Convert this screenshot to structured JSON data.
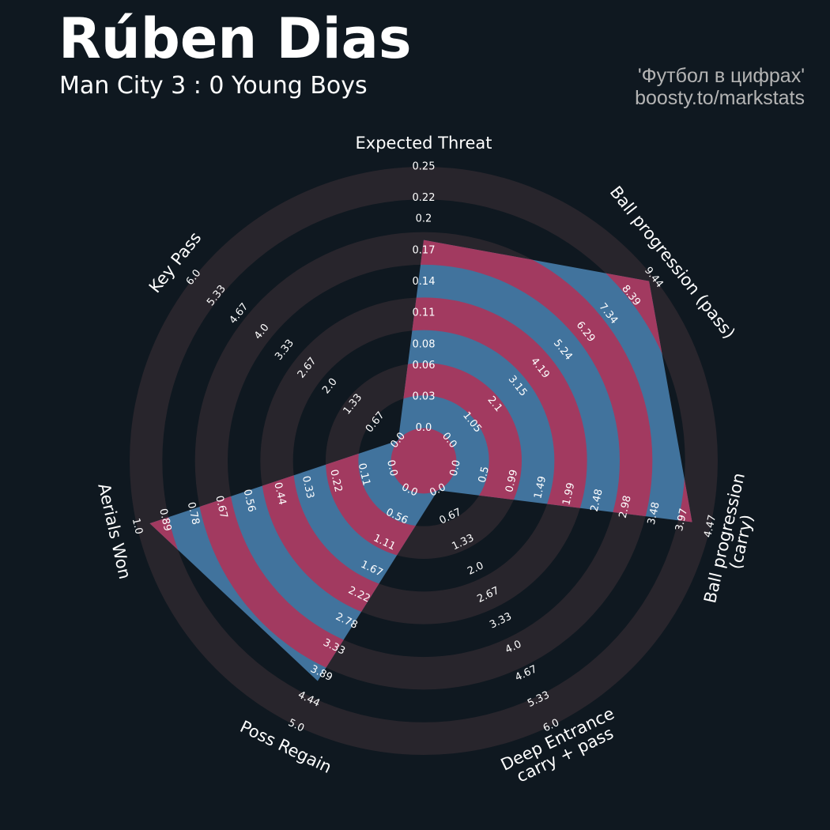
{
  "chart_data": {
    "type": "radar",
    "title": "Rúben Dias",
    "subtitle": "Man City 3 : 0 Young Boys",
    "credits": [
      "'Футбол в цифрах'",
      "boosty.to/markstats"
    ],
    "categories": [
      "Expected Threat",
      "Ball progression (pass)",
      "Ball progression (carry)",
      "Deep Entrance\ncarry + pass",
      "Poss Regain",
      "Aerials Won",
      "Key Pass"
    ],
    "axes": [
      {
        "lim": [
          0,
          0.25
        ],
        "ticks": [
          {
            "value": 0,
            "label": "0.0"
          },
          0.03,
          0.06,
          0.08,
          0.11,
          0.14,
          0.17,
          0.2,
          0.22,
          0.25
        ]
      },
      {
        "lim": [
          0,
          9.44
        ],
        "ticks": [
          {
            "value": 0,
            "label": "0.0"
          },
          1.05,
          2.1,
          3.15,
          4.19,
          5.24,
          6.29,
          7.34,
          8.39,
          9.44
        ]
      },
      {
        "lim": [
          0,
          4.47
        ],
        "ticks": [
          {
            "value": 0,
            "label": "0.0"
          },
          0.5,
          0.99,
          1.49,
          1.99,
          2.48,
          2.98,
          3.48,
          3.97,
          4.47
        ]
      },
      {
        "lim": [
          0,
          6
        ],
        "ticks": [
          {
            "value": 0,
            "label": "0.0"
          },
          0.67,
          1.33,
          {
            "value": 2,
            "label": "2.0"
          },
          2.67,
          3.33,
          {
            "value": 4,
            "label": "4.0"
          },
          4.67,
          5.33,
          {
            "value": 6,
            "label": "6.0"
          }
        ]
      },
      {
        "lim": [
          0,
          5
        ],
        "ticks": [
          {
            "value": 0,
            "label": "0.0"
          },
          0.56,
          1.11,
          1.67,
          2.22,
          2.78,
          3.33,
          3.89,
          4.44,
          {
            "value": 5,
            "label": "5.0"
          }
        ]
      },
      {
        "lim": [
          0,
          1
        ],
        "ticks": [
          {
            "value": 0,
            "label": "0.0"
          },
          0.11,
          0.22,
          0.33,
          0.44,
          0.56,
          0.67,
          0.78,
          0.89,
          {
            "value": 1,
            "label": "1.0"
          }
        ]
      },
      {
        "lim": [
          0,
          6
        ],
        "ticks": [
          {
            "value": 0,
            "label": "0.0"
          },
          0.67,
          1.33,
          {
            "value": 2,
            "label": "2.0"
          },
          2.67,
          3.33,
          {
            "value": 4,
            "label": "4.0"
          },
          4.67,
          5.33,
          {
            "value": 6,
            "label": "6.0"
          }
        ]
      }
    ],
    "series": [
      {
        "values": [
          0.18,
          9.23,
          4.15,
          0,
          4.05,
          0.95,
          0
        ],
        "color": "#41739d",
        "band_color": "#a23a60"
      }
    ],
    "ring_color": "#28252c"
  }
}
